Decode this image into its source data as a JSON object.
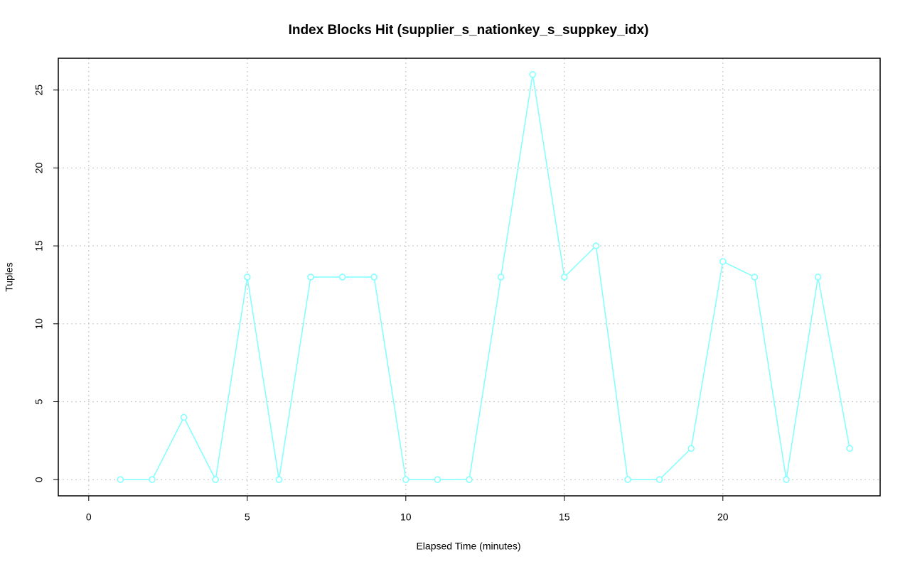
{
  "chart_data": {
    "type": "line",
    "title": "Index Blocks Hit (supplier_s_nationkey_s_suppkey_idx)",
    "x_label": "Elapsed Time (minutes)",
    "y_label": "Tuples",
    "x": [
      1,
      2,
      3,
      4,
      5,
      6,
      7,
      8,
      9,
      10,
      11,
      12,
      13,
      14,
      15,
      16,
      17,
      18,
      19,
      20,
      21,
      22,
      23,
      24
    ],
    "series": [
      {
        "color": "#7fffff",
        "values": [
          0,
          0,
          4,
          0,
          13,
          0,
          13,
          13,
          13,
          0,
          0,
          0,
          13,
          26,
          13,
          15,
          0,
          0,
          2,
          14,
          13,
          0,
          13,
          2
        ]
      }
    ],
    "xlim": [
      -0.96,
      24.96
    ],
    "xticks": [
      0,
      5,
      10,
      15,
      20
    ],
    "ylim": [
      -1.04,
      27.04
    ],
    "yticks": [
      0,
      5,
      10,
      15,
      20,
      25
    ],
    "grid": true
  }
}
